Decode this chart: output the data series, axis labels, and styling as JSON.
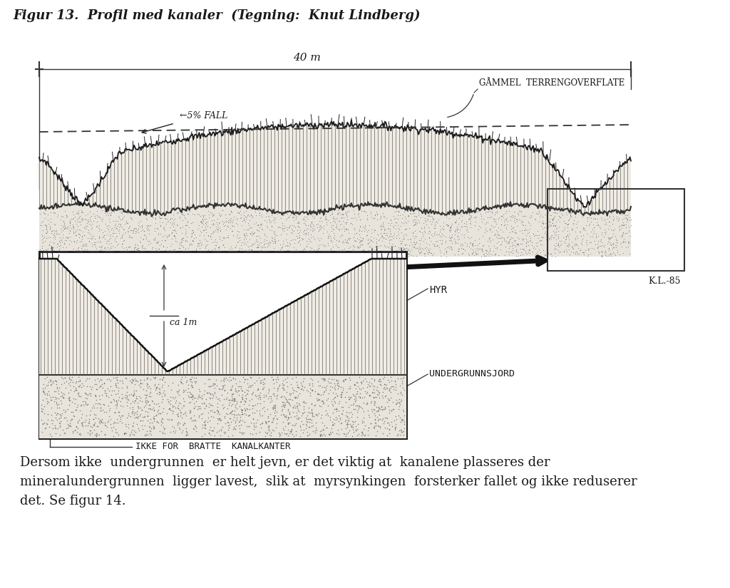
{
  "title": "Figur 13.  Profil med kanaler  (Tegning:  Knut Lindberg)",
  "title_fontsize": 13,
  "bg_color": "#ffffff",
  "text_color": "#1a1a1a",
  "body_text": "Dersom ikke  undergrunnen  er helt jevn, er det viktig at  kanalene plasseres der\nmineralundergrunnen  ligger lavest,  slik at  myrsynkingen  forsterker fallet og ikke reduserer\ndet. Se figur 14.",
  "body_fontsize": 13,
  "label_40m": "40 m",
  "label_5fall": "←5% FALL",
  "label_gammel": "GÅMMEL  TERRENGOVERFLATE",
  "label_kl85": "K.L.-85",
  "label_myr": "HYR",
  "label_undergrunns": "UNDERGRUNNSJORD",
  "label_ikke": "IKKE FOR  BRATTE  KANALKANTER",
  "label_ca": "ca 1m"
}
